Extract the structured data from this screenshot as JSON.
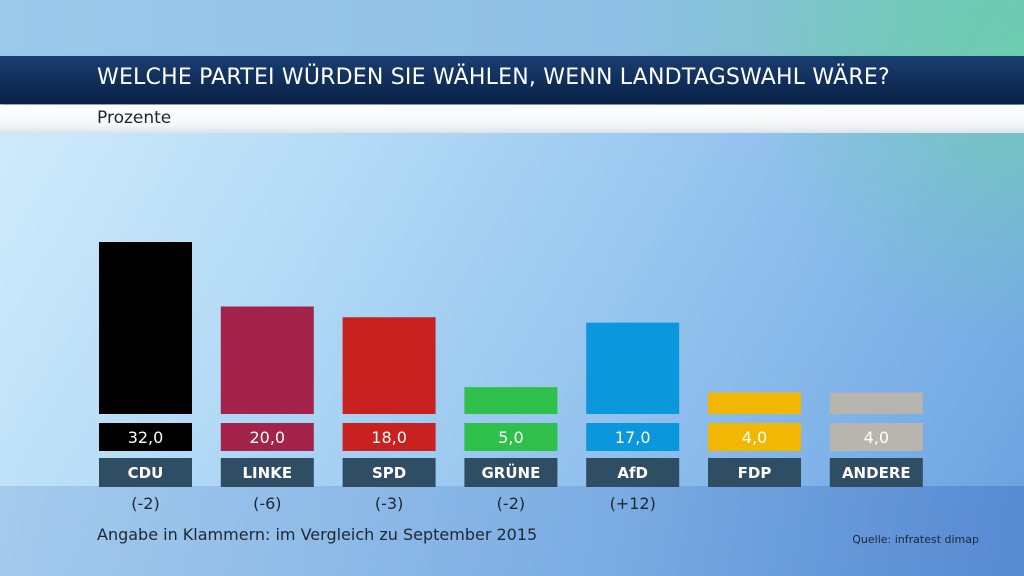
{
  "chart_data": {
    "type": "bar",
    "title": "WELCHE PARTEI WÜRDEN SIE WÄHLEN, WENN LANDTAGSWAHL WÄRE?",
    "subtitle": "Prozente",
    "categories": [
      "CDU",
      "LINKE",
      "SPD",
      "GRÜNE",
      "AfD",
      "FDP",
      "ANDERE"
    ],
    "values": [
      32.0,
      20.0,
      18.0,
      5.0,
      17.0,
      4.0,
      4.0
    ],
    "value_labels": [
      "32,0",
      "20,0",
      "18,0",
      "5,0",
      "17,0",
      "4,0",
      "4,0"
    ],
    "changes": [
      "(-2)",
      "(-6)",
      "(-3)",
      "(-2)",
      "(+12)",
      "",
      ""
    ],
    "colors": [
      "#000000",
      "#a3234a",
      "#c8211f",
      "#2ec04a",
      "#0b97db",
      "#f2b705",
      "#b8b4ae"
    ],
    "value_text_colors": [
      "#ffffff",
      "#ffffff",
      "#ffffff",
      "#ffffff",
      "#ffffff",
      "#ffffff",
      "#ffffff"
    ],
    "label_background": "#2f4d63",
    "ylim": [
      0,
      32
    ],
    "xlabel": "",
    "ylabel": "",
    "legend": "none",
    "grid": false
  },
  "footnote": "Angabe in Klammern: im Vergleich zu September 2015",
  "source": "Quelle: infratest dimap"
}
